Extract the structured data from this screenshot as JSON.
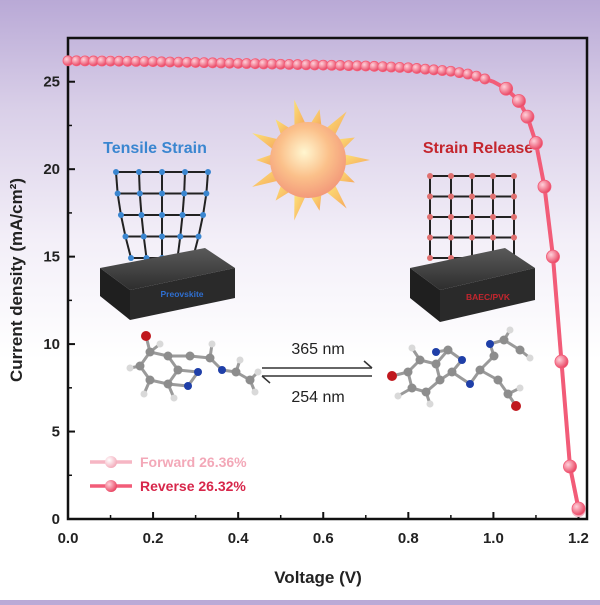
{
  "chart_data": {
    "type": "line",
    "xlabel": "Voltage (V)",
    "ylabel": "Current density (mA/cm²)",
    "xlim": [
      0.0,
      1.22
    ],
    "ylim": [
      0,
      27.5
    ],
    "xticks": [
      0.0,
      0.2,
      0.4,
      0.6,
      0.8,
      1.0,
      1.2
    ],
    "yticks": [
      0,
      5,
      10,
      15,
      20,
      25
    ],
    "xtick_labels": [
      "0.0",
      "0.2",
      "0.4",
      "0.6",
      "0.8",
      "1.0",
      "1.2"
    ],
    "ytick_labels": [
      "0",
      "5",
      "10",
      "15",
      "20",
      "25"
    ],
    "legend_position": "lower-left",
    "series": [
      {
        "name": "Forward 26.36%",
        "color": "#f6b6c4",
        "x": [
          0.0,
          0.1,
          0.2,
          0.3,
          0.4,
          0.5,
          0.6,
          0.7,
          0.8,
          0.9,
          0.95,
          1.0,
          1.03,
          1.06,
          1.08,
          1.1,
          1.12,
          1.14,
          1.16,
          1.18,
          1.2
        ],
        "y": [
          26.2,
          26.2,
          26.15,
          26.1,
          26.05,
          26.0,
          25.95,
          25.9,
          25.8,
          25.6,
          25.4,
          25.0,
          24.6,
          23.9,
          23.0,
          21.5,
          19.0,
          15.0,
          9.0,
          3.0,
          0.5
        ]
      },
      {
        "name": "Reverse 26.32%",
        "color": "#f25c78",
        "x": [
          0.0,
          0.1,
          0.2,
          0.3,
          0.4,
          0.5,
          0.6,
          0.7,
          0.8,
          0.9,
          0.95,
          1.0,
          1.03,
          1.06,
          1.08,
          1.1,
          1.12,
          1.14,
          1.16,
          1.18,
          1.2
        ],
        "y": [
          26.2,
          26.18,
          26.15,
          26.1,
          26.05,
          26.0,
          25.95,
          25.9,
          25.8,
          25.6,
          25.4,
          25.0,
          24.6,
          23.9,
          23.0,
          21.5,
          19.0,
          15.0,
          9.0,
          3.0,
          0.6
        ]
      }
    ],
    "annotations": {
      "tensile_label": "Tensile Strain",
      "release_label": "Strain Release",
      "left_device_label": "Preovskite",
      "right_device_label": "BAEC/PVK",
      "arrow_top": "365 nm",
      "arrow_bottom": "254 nm"
    },
    "colors": {
      "tensile": "#3a86d0",
      "release": "#c4262e",
      "device_label_left": "#2f6fd0",
      "device_label_right": "#c4262e"
    }
  }
}
